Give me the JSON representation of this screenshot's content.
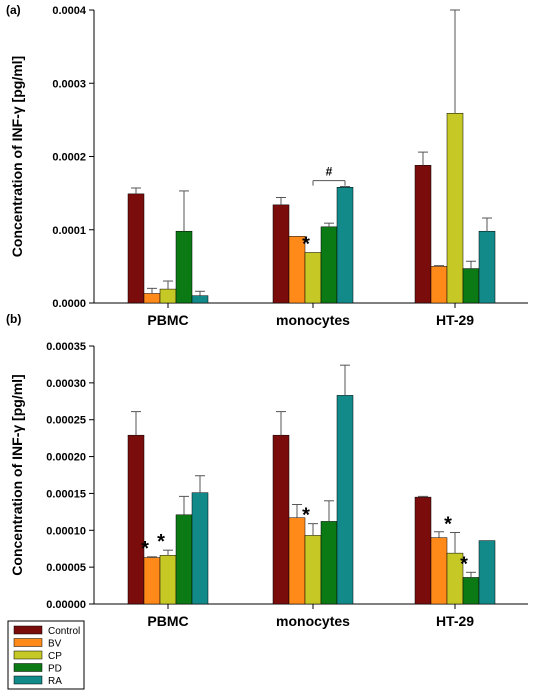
{
  "chart_data": [
    {
      "panel": "(a)",
      "type": "bar",
      "ylabel": "Concentration of INF-γ [pg/ml]",
      "ylim": [
        0,
        0.0004
      ],
      "yticks": [
        "0.0000",
        "0.0001",
        "0.0002",
        "0.0003",
        "0.0004"
      ],
      "ytick_values": [
        0,
        0.0001,
        0.0002,
        0.0003,
        0.0004
      ],
      "categories": [
        "PBMC",
        "monocytes",
        "HT-29"
      ],
      "series": [
        {
          "name": "Control",
          "values": [
            0.000149,
            0.000134,
            0.000188
          ],
          "errors": [
            8e-06,
            1e-05,
            1.8e-05
          ]
        },
        {
          "name": "BV",
          "values": [
            1.3e-05,
            9.1e-05,
            5e-05
          ],
          "errors": [
            7e-06,
            0.0,
            1e-06
          ]
        },
        {
          "name": "CP",
          "values": [
            1.9e-05,
            6.9e-05,
            0.000259
          ],
          "errors": [
            1.1e-05,
            0.0,
            0.000141
          ]
        },
        {
          "name": "PD",
          "values": [
            9.8e-05,
            0.000104,
            4.7e-05
          ],
          "errors": [
            5.5e-05,
            5e-06,
            1e-05
          ]
        },
        {
          "name": "RA",
          "values": [
            1e-05,
            0.000158,
            9.8e-05
          ],
          "errors": [
            6e-06,
            1e-06,
            1.8e-05
          ]
        }
      ],
      "markers": [
        {
          "category": 1,
          "series": 2,
          "text": "*"
        }
      ],
      "bracket": {
        "category": 1,
        "from_series": 2,
        "to_series": 4,
        "level": 0.000167,
        "text": "#"
      }
    },
    {
      "panel": "(b)",
      "type": "bar",
      "ylabel": "Concentration of INF-γ [pg/ml]",
      "ylim": [
        0,
        0.00035
      ],
      "yticks": [
        "0.00000",
        "0.00005",
        "0.00010",
        "0.00015",
        "0.00020",
        "0.00025",
        "0.00030",
        "0.00035"
      ],
      "ytick_values": [
        0,
        5e-05,
        0.0001,
        0.00015,
        0.0002,
        0.00025,
        0.0003,
        0.00035
      ],
      "categories": [
        "PBMC",
        "monocytes",
        "HT-29"
      ],
      "series": [
        {
          "name": "Control",
          "values": [
            0.000229,
            0.000229,
            0.000145
          ],
          "errors": [
            3.2e-05,
            3.2e-05,
            1e-06
          ]
        },
        {
          "name": "BV",
          "values": [
            6.3e-05,
            0.000117,
            9e-05
          ],
          "errors": [
            1e-06,
            1.8e-05,
            8e-06
          ]
        },
        {
          "name": "CP",
          "values": [
            6.6e-05,
            9.3e-05,
            6.9e-05
          ],
          "errors": [
            7e-06,
            1.6e-05,
            2.8e-05
          ]
        },
        {
          "name": "PD",
          "values": [
            0.000121,
            0.000112,
            3.6e-05
          ],
          "errors": [
            2.5e-05,
            2.8e-05,
            7e-06
          ]
        },
        {
          "name": "RA",
          "values": [
            0.000151,
            0.000283,
            8.6e-05
          ],
          "errors": [
            2.3e-05,
            4.1e-05,
            0.0
          ]
        }
      ],
      "markers": [
        {
          "category": 0,
          "series": 1,
          "text": "*"
        },
        {
          "category": 0,
          "series": 2,
          "text": "*"
        },
        {
          "category": 1,
          "series": 2,
          "text": "*"
        },
        {
          "category": 2,
          "series": 2,
          "text": "*"
        },
        {
          "category": 2,
          "series": 3,
          "text": "*"
        }
      ]
    }
  ],
  "legend": {
    "entries": [
      "Control",
      "BV",
      "CP",
      "PD",
      "RA"
    ],
    "colors": [
      "#7a0c0c",
      "#ff8a1a",
      "#c6c825",
      "#0b7a14",
      "#138a8a"
    ],
    "placement": "bottom-left"
  }
}
